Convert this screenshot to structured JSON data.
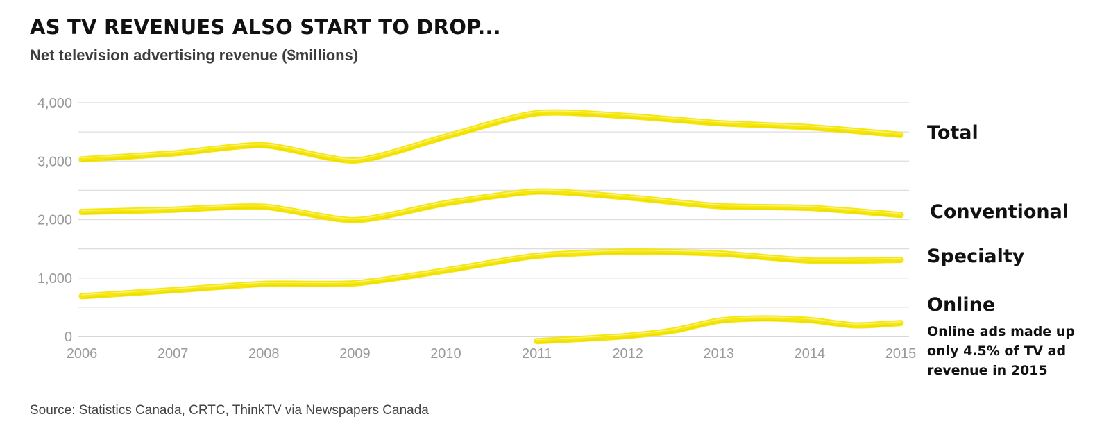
{
  "title": "AS TV REVENUES ALSO START TO DROP...",
  "subtitle": "Net television advertising revenue ($millions)",
  "source": "Source: Statistics Canada, CRTC, ThinkTV via Newspapers Canada",
  "colors": {
    "line": "#f4e500",
    "grid": "#dddddd",
    "tick": "#999999",
    "label": "#111111"
  },
  "chart_data": {
    "type": "line",
    "title": "AS TV REVENUES ALSO START TO DROP...",
    "subtitle": "Net television advertising revenue ($millions)",
    "xlabel": "",
    "ylabel": "",
    "ylim": [
      0,
      4000
    ],
    "xlim": [
      2006,
      2015
    ],
    "grid": true,
    "legend": "direct-labels-right",
    "y_ticks": [
      {
        "value": 0,
        "label": "0"
      },
      {
        "value": 1000,
        "label": "1,000"
      },
      {
        "value": 2000,
        "label": "2,000"
      },
      {
        "value": 3000,
        "label": "3,000"
      },
      {
        "value": 4000,
        "label": "4,000"
      }
    ],
    "x_ticks": [
      {
        "value": 2006,
        "label": "2006"
      },
      {
        "value": 2007,
        "label": "2007"
      },
      {
        "value": 2008,
        "label": "2008"
      },
      {
        "value": 2009,
        "label": "2009"
      },
      {
        "value": 2010,
        "label": "2010"
      },
      {
        "value": 2011,
        "label": "2011"
      },
      {
        "value": 2012,
        "label": "2012"
      },
      {
        "value": 2013,
        "label": "2013"
      },
      {
        "value": 2014,
        "label": "2014"
      },
      {
        "value": 2015,
        "label": "2015"
      }
    ],
    "series": [
      {
        "name": "Total",
        "x": [
          2006,
          2007,
          2008,
          2009,
          2010,
          2011,
          2012,
          2013,
          2014,
          2015
        ],
        "values": [
          3030,
          3130,
          3270,
          3010,
          3420,
          3820,
          3770,
          3650,
          3580,
          3450
        ]
      },
      {
        "name": "Conventional",
        "x": [
          2006,
          2007,
          2008,
          2009,
          2010,
          2011,
          2012,
          2013,
          2014,
          2015
        ],
        "values": [
          2130,
          2170,
          2220,
          1990,
          2280,
          2480,
          2380,
          2230,
          2200,
          2080
        ]
      },
      {
        "name": "Specialty",
        "x": [
          2006,
          2007,
          2008,
          2009,
          2010,
          2011,
          2012,
          2013,
          2014,
          2015
        ],
        "values": [
          690,
          790,
          900,
          910,
          1130,
          1380,
          1450,
          1420,
          1300,
          1310
        ]
      },
      {
        "name": "Online",
        "x": [
          2011,
          2011.5,
          2012,
          2012.5,
          2013,
          2013.5,
          2014,
          2014.5,
          2015
        ],
        "values": [
          -80,
          -40,
          10,
          100,
          270,
          310,
          280,
          190,
          230
        ]
      }
    ],
    "annotations": [
      {
        "series": "Online",
        "text": [
          "Online ads made up",
          "only 4.5% of TV ad",
          "revenue in 2015"
        ]
      }
    ]
  }
}
